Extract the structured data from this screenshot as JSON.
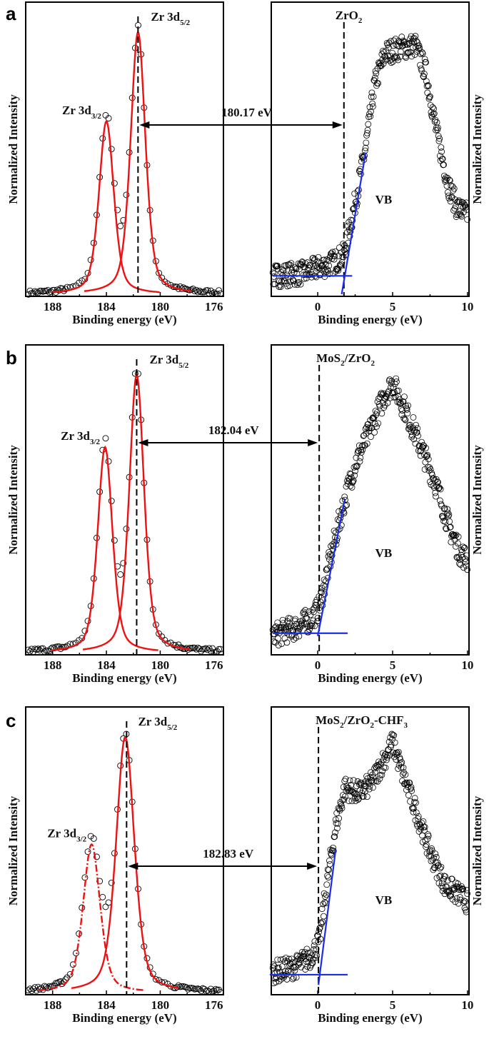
{
  "chart_data": [
    {
      "panel_letter": "a",
      "type": "scatter",
      "left": {
        "xlabel": "Binding energy (eV)",
        "ylabel": "Normalized Intensity",
        "xlim": [
          190,
          175.3
        ],
        "xticks": [
          "188",
          "184",
          "180",
          "176"
        ],
        "peaks": [
          {
            "name": "Zr 3d",
            "sub": "3/2",
            "center": 184.0,
            "height": 0.66,
            "fwhm": 1.3,
            "line": "solid"
          },
          {
            "name": "Zr 3d",
            "sub": "5/2",
            "center": 181.65,
            "height": 1.0,
            "fwhm": 1.3,
            "line": "solid"
          }
        ],
        "dashed_line_at": 181.65
      },
      "right": {
        "xlabel": "Binding energy (eV)",
        "ylabel": "Normalized Intensity",
        "xlim": [
          -3.1,
          10.1
        ],
        "xticks": [
          "0",
          "5",
          "10"
        ],
        "sample_label": [
          {
            "t": "ZrO",
            "sub": false
          },
          {
            "t": "2",
            "sub": true
          }
        ],
        "region_label": "VB",
        "vbm": 1.75,
        "baseline_fit": {
          "x": [
            -3.0,
            2.3
          ],
          "y": 0.07
        },
        "edge_fit": {
          "x": [
            1.6,
            3.2
          ],
          "y": [
            0.0,
            0.54
          ]
        },
        "spectrum": [
          [
            -3.1,
            0.07
          ],
          [
            -1,
            0.08
          ],
          [
            1,
            0.12
          ],
          [
            1.75,
            0.15
          ],
          [
            2.5,
            0.35
          ],
          [
            3.2,
            0.56
          ],
          [
            3.8,
            0.8
          ],
          [
            4.5,
            0.92
          ],
          [
            5.5,
            0.94
          ],
          [
            6.5,
            0.95
          ],
          [
            7.2,
            0.85
          ],
          [
            8.0,
            0.6
          ],
          [
            8.7,
            0.42
          ],
          [
            9.3,
            0.33
          ],
          [
            10.1,
            0.3
          ]
        ]
      },
      "separation_label": "180.17 eV"
    },
    {
      "panel_letter": "b",
      "type": "scatter",
      "left": {
        "xlabel": "Binding energy (eV)",
        "ylabel": "Normalized Intensity",
        "xlim": [
          190,
          175.3
        ],
        "xticks": [
          "188",
          "184",
          "180",
          "176"
        ],
        "peaks": [
          {
            "name": "Zr 3d",
            "sub": "3/2",
            "center": 184.1,
            "height": 0.74,
            "fwhm": 1.3,
            "line": "solid"
          },
          {
            "name": "Zr 3d",
            "sub": "5/2",
            "center": 181.75,
            "height": 1.0,
            "fwhm": 1.3,
            "line": "solid"
          }
        ],
        "dashed_line_at": 181.75
      },
      "right": {
        "xlabel": "Binding energy (eV)",
        "ylabel": "Normalized Intensity",
        "xlim": [
          -3.1,
          10.1
        ],
        "xticks": [
          "0",
          "5",
          "10"
        ],
        "sample_label": [
          {
            "t": "MoS",
            "sub": false
          },
          {
            "t": "2",
            "sub": true
          },
          {
            "t": "/ZrO",
            "sub": false
          },
          {
            "t": "2",
            "sub": true
          }
        ],
        "region_label": "VB",
        "vbm": 0.1,
        "baseline_fit": {
          "x": [
            -3.0,
            2.0
          ],
          "y": 0.07
        },
        "edge_fit": {
          "x": [
            0.0,
            1.8
          ],
          "y": [
            0.06,
            0.55
          ]
        },
        "spectrum": [
          [
            -3.1,
            0.06
          ],
          [
            -1.5,
            0.09
          ],
          [
            -0.5,
            0.12
          ],
          [
            0.1,
            0.16
          ],
          [
            0.8,
            0.33
          ],
          [
            1.8,
            0.55
          ],
          [
            2.5,
            0.68
          ],
          [
            3.5,
            0.8
          ],
          [
            4.5,
            0.93
          ],
          [
            5.0,
            0.97
          ],
          [
            5.8,
            0.88
          ],
          [
            6.8,
            0.75
          ],
          [
            7.8,
            0.62
          ],
          [
            8.8,
            0.45
          ],
          [
            9.5,
            0.36
          ],
          [
            10.1,
            0.33
          ]
        ]
      },
      "separation_label": "182.04 eV"
    },
    {
      "panel_letter": "c",
      "type": "scatter",
      "left": {
        "xlabel": "Binding energy (eV)",
        "ylabel": "Normalized Intensity",
        "xlim": [
          190,
          175.3
        ],
        "xticks": [
          "188",
          "184",
          "180",
          "176"
        ],
        "peaks": [
          {
            "name": "Zr 3d",
            "sub": "3/2",
            "center": 185.1,
            "height": 0.58,
            "fwhm": 1.5,
            "line": "dashdot"
          },
          {
            "name": "Zr 3d",
            "sub": "5/2",
            "center": 182.6,
            "height": 1.0,
            "fwhm": 1.6,
            "line": "solid"
          }
        ],
        "dashed_line_at": 182.5
      },
      "right": {
        "xlabel": "Binding energy (eV)",
        "ylabel": "Normalized Intensity",
        "xlim": [
          -3.1,
          10.1
        ],
        "xticks": [
          "0",
          "5",
          "10"
        ],
        "sample_label": [
          {
            "t": "MoS",
            "sub": false
          },
          {
            "t": "2",
            "sub": true
          },
          {
            "t": "/ZrO",
            "sub": false
          },
          {
            "t": "2",
            "sub": true
          },
          {
            "t": "-CHF",
            "sub": false
          },
          {
            "t": "3",
            "sub": true
          }
        ],
        "region_label": "VB",
        "vbm": 0.05,
        "baseline_fit": {
          "x": [
            -3.2,
            2.0
          ],
          "y": 0.07
        },
        "edge_fit": {
          "x": [
            0.05,
            1.2
          ],
          "y": [
            0.03,
            0.56
          ]
        },
        "spectrum": [
          [
            -3.1,
            0.08
          ],
          [
            -1.5,
            0.1
          ],
          [
            -0.5,
            0.14
          ],
          [
            0.1,
            0.2
          ],
          [
            0.6,
            0.42
          ],
          [
            1.2,
            0.65
          ],
          [
            1.8,
            0.8
          ],
          [
            2.8,
            0.78
          ],
          [
            3.6,
            0.82
          ],
          [
            4.5,
            0.92
          ],
          [
            5.0,
            0.98
          ],
          [
            5.7,
            0.85
          ],
          [
            6.5,
            0.72
          ],
          [
            7.5,
            0.55
          ],
          [
            8.5,
            0.42
          ],
          [
            9.5,
            0.38
          ],
          [
            10.1,
            0.35
          ]
        ]
      },
      "separation_label": "182.83 eV"
    }
  ],
  "colors": {
    "fit": "#ee1111",
    "edge_fit": "#1a2cf0",
    "data": "#000000"
  }
}
